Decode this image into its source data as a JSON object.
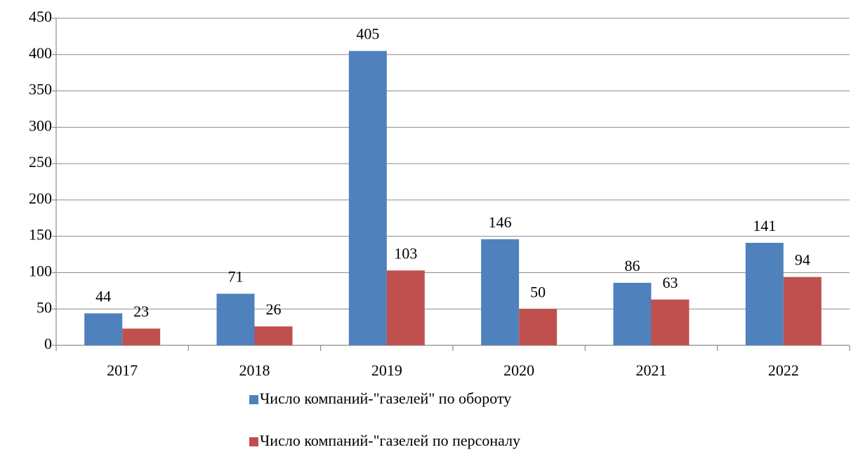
{
  "chart_data": {
    "type": "bar",
    "categories": [
      "2017",
      "2018",
      "2019",
      "2020",
      "2021",
      "2022"
    ],
    "series": [
      {
        "name": "Число компаний-\"газелей\" по обороту",
        "color": "#4f81bd",
        "values": [
          44,
          71,
          405,
          146,
          86,
          141
        ]
      },
      {
        "name": "Число компаний-\"газелей по персоналу",
        "color": "#c0504d",
        "values": [
          23,
          26,
          103,
          50,
          63,
          94
        ]
      }
    ],
    "ylim": [
      0,
      450
    ],
    "yticks": [
      0,
      50,
      100,
      150,
      200,
      250,
      300,
      350,
      400,
      450
    ],
    "grid": true,
    "legend": "bottom"
  }
}
